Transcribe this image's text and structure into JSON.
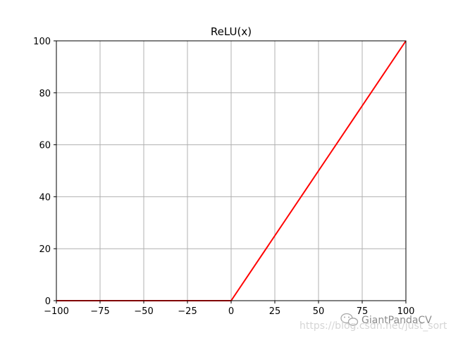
{
  "chart_data": {
    "type": "line",
    "title": "ReLU(x)",
    "xlabel": "",
    "ylabel": "",
    "xlim": [
      -100,
      100
    ],
    "ylim": [
      0,
      100
    ],
    "x_ticks": [
      -100,
      -75,
      -50,
      -25,
      0,
      25,
      50,
      75,
      100
    ],
    "x_tick_labels": [
      "−100",
      "−75",
      "−50",
      "−25",
      "0",
      "25",
      "50",
      "75",
      "100"
    ],
    "y_ticks": [
      0,
      20,
      40,
      60,
      80,
      100
    ],
    "y_tick_labels": [
      "0",
      "20",
      "40",
      "60",
      "80",
      "100"
    ],
    "grid": true,
    "series": [
      {
        "color": "#ff0000",
        "x": [
          -100,
          -75,
          -50,
          -25,
          0,
          25,
          50,
          75,
          100
        ],
        "y": [
          0,
          0,
          0,
          0,
          0,
          25,
          50,
          75,
          100
        ]
      }
    ]
  },
  "watermark": {
    "brand": "GiantPandaCV",
    "url": "https://blog.csdn.net/just_sort"
  }
}
